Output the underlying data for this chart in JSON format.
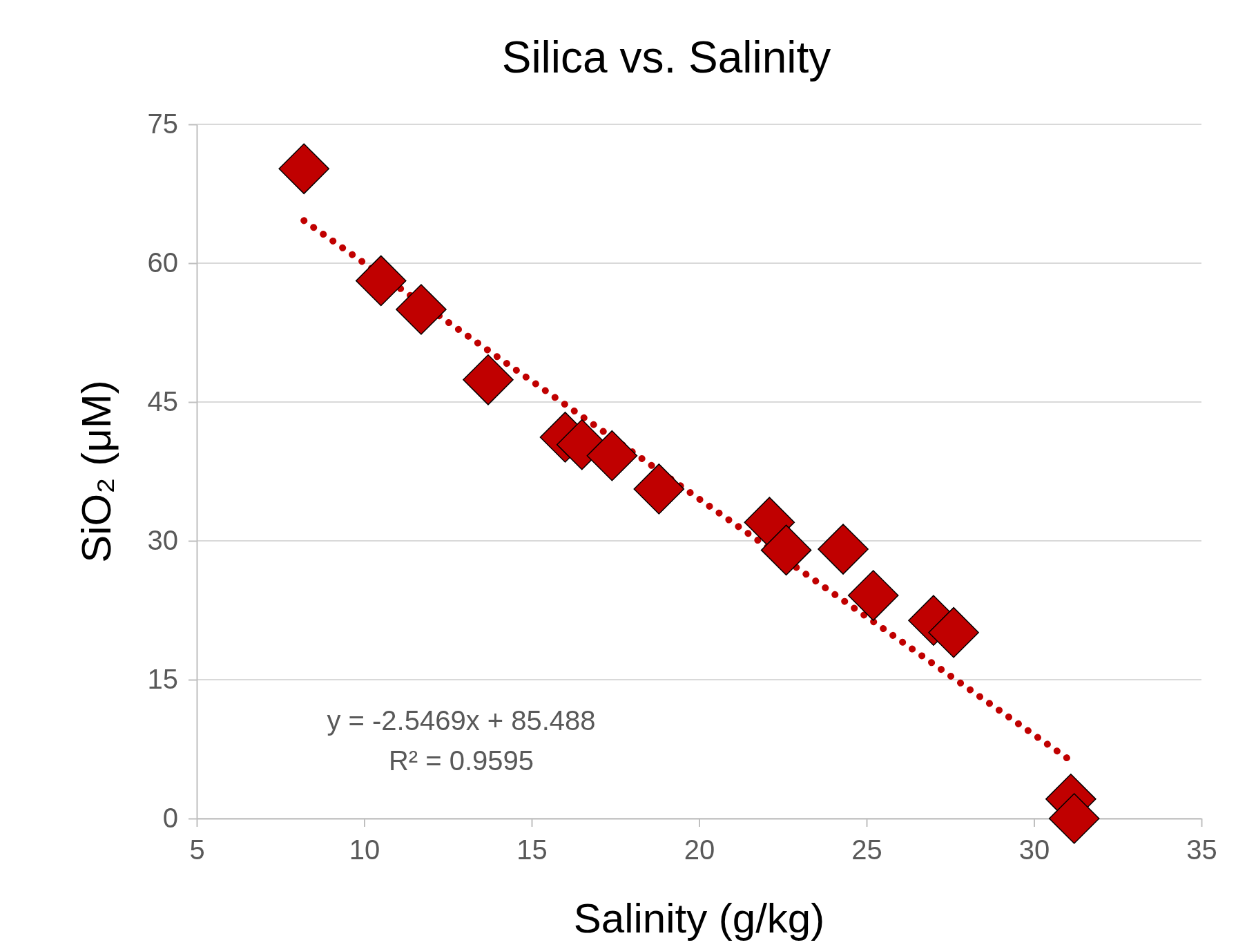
{
  "chart_data": {
    "type": "scatter",
    "title": "Silica vs. Salinity",
    "xlabel": "Salinity (g/kg)",
    "ylabel": "SiO₂ (μM)",
    "xlim": [
      5,
      35
    ],
    "xticks": [
      5,
      10,
      15,
      20,
      25,
      30,
      35
    ],
    "ylim": [
      0,
      75
    ],
    "yticks": [
      0,
      15,
      30,
      45,
      60,
      75
    ],
    "grid": "y",
    "marker": "diamond",
    "series": [
      {
        "color": "#c00000",
        "x": [
          8.2,
          10.5,
          11.7,
          13.7,
          16.0,
          16.5,
          17.4,
          18.8,
          22.1,
          22.6,
          24.3,
          25.2,
          27.0,
          27.6,
          31.1,
          31.2
        ],
        "values": [
          70.2,
          58.1,
          55.0,
          47.4,
          41.2,
          40.4,
          39.2,
          35.6,
          32.0,
          29.0,
          29.1,
          24.1,
          21.4,
          20.1,
          2.1,
          0.0
        ]
      },
      {
        "type": "line",
        "color": "#c00000",
        "line_style": "dotted",
        "marker": "none",
        "x": [
          8.2,
          31.0
        ],
        "values": [
          64.6,
          6.5
        ]
      }
    ],
    "annotations": [
      "y = -2.5469x + 85.488",
      "R² = 0.9595"
    ]
  }
}
